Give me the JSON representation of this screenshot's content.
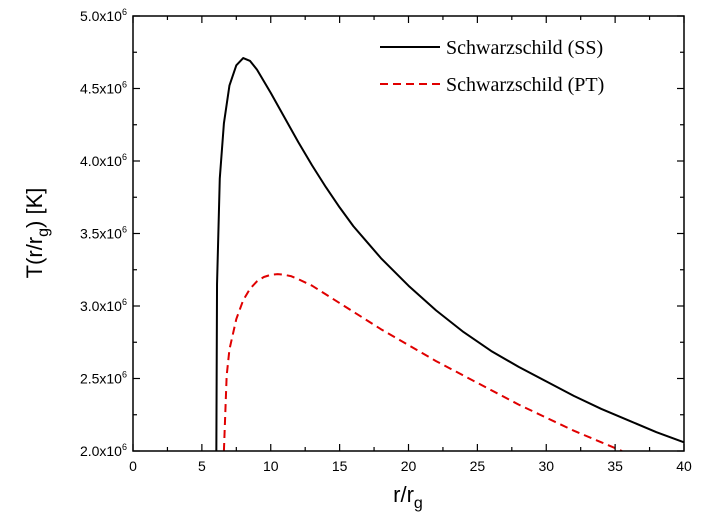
{
  "chart_data": {
    "type": "line",
    "xlabel": {
      "main": "r/r",
      "sub": "g"
    },
    "ylabel": {
      "pre": "T(r/r",
      "sub": "g",
      "post": ") [K]"
    },
    "xlim": [
      0,
      40
    ],
    "ylim": [
      2000000,
      5000000
    ],
    "x_ticks": [
      0,
      5,
      10,
      15,
      20,
      25,
      30,
      35,
      40
    ],
    "x_tick_labels": [
      "0",
      "5",
      "10",
      "15",
      "20",
      "25",
      "30",
      "35",
      "40"
    ],
    "y_ticks": [
      2000000,
      2500000,
      3000000,
      3500000,
      4000000,
      4500000,
      5000000
    ],
    "y_tick_labels": [
      {
        "mantissa": "2.0x10",
        "exp": "6"
      },
      {
        "mantissa": "2.5x10",
        "exp": "6"
      },
      {
        "mantissa": "3.0x10",
        "exp": "6"
      },
      {
        "mantissa": "3.5x10",
        "exp": "6"
      },
      {
        "mantissa": "4.0x10",
        "exp": "6"
      },
      {
        "mantissa": "4.5x10",
        "exp": "6"
      },
      {
        "mantissa": "5.0x10",
        "exp": "6"
      }
    ],
    "legend_position": "top-right",
    "grid": false,
    "series": [
      {
        "name": "Schwarzschild (SS)",
        "color": "#000000",
        "style": "solid",
        "x": [
          6.05,
          6.1,
          6.3,
          6.6,
          7.0,
          7.5,
          8.0,
          8.5,
          9.0,
          10,
          11,
          12,
          13,
          14,
          15,
          16,
          17,
          18,
          20,
          22,
          24,
          26,
          28,
          30,
          32,
          34,
          36,
          38,
          40
        ],
        "y": [
          2000000,
          3150000,
          3880000,
          4260000,
          4520000,
          4660000,
          4710000,
          4690000,
          4630000,
          4470000,
          4300000,
          4130000,
          3970000,
          3820000,
          3680000,
          3550000,
          3440000,
          3330000,
          3140000,
          2970000,
          2820000,
          2690000,
          2580000,
          2480000,
          2380000,
          2290000,
          2210000,
          2130000,
          2060000
        ]
      },
      {
        "name": "Schwarzschild (PT)",
        "color": "#e00000",
        "style": "dashed",
        "x": [
          6.6,
          6.8,
          7.0,
          7.5,
          8.0,
          8.5,
          9.0,
          9.5,
          10,
          10.5,
          11,
          11.5,
          12,
          13,
          14,
          15,
          16,
          18,
          20,
          22,
          24,
          26,
          28,
          30,
          32,
          34,
          35.5
        ],
        "y": [
          2000000,
          2520000,
          2700000,
          2910000,
          3040000,
          3120000,
          3170000,
          3200000,
          3215000,
          3220000,
          3215000,
          3205000,
          3185000,
          3140000,
          3080000,
          3020000,
          2960000,
          2840000,
          2730000,
          2620000,
          2520000,
          2420000,
          2320000,
          2230000,
          2140000,
          2060000,
          2000000
        ]
      }
    ]
  }
}
